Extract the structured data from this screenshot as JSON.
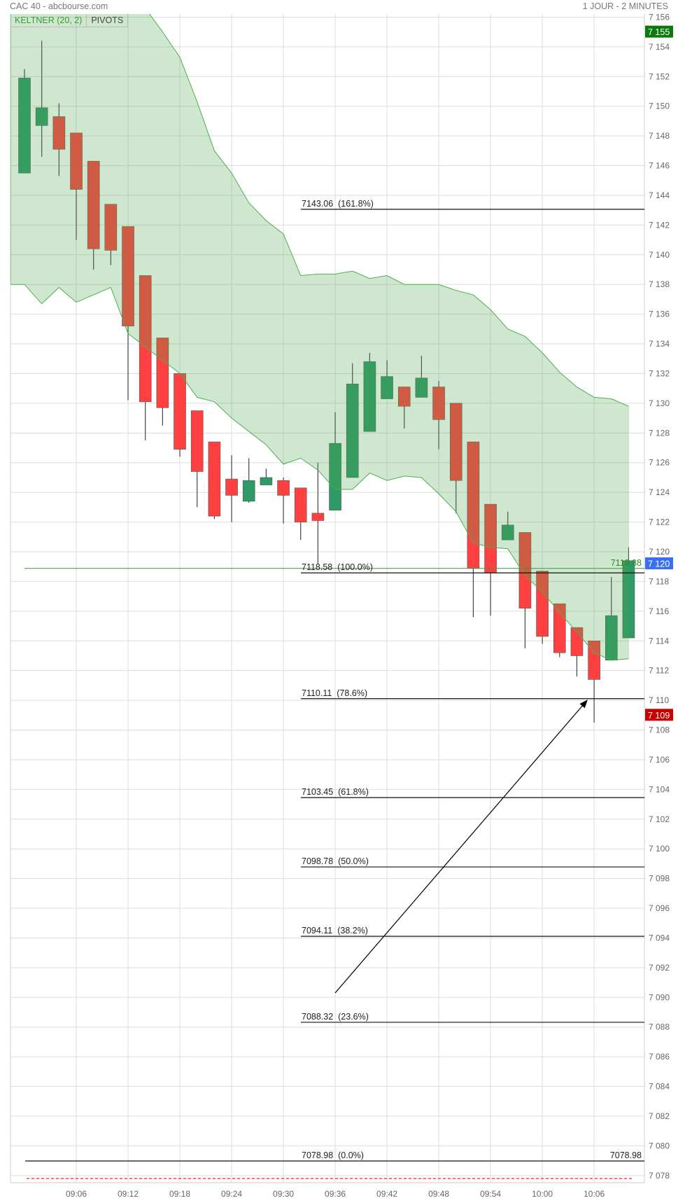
{
  "header": {
    "title": "CAC 40 - abcbourse.com",
    "period": "1 JOUR - 2 MINUTES"
  },
  "legend": {
    "keltner": "KELTNER (20, 2)",
    "pivots": "PIVOTS"
  },
  "colors": {
    "up": "#2e9a66",
    "down": "#ff4040",
    "band_line": "#4caf50",
    "band_fill": "rgba(76,165,76,0.27)",
    "badge_high": "#0a7a0a",
    "badge_last": "#3a6ff0",
    "badge_low": "#c80000"
  },
  "chart_data": {
    "type": "candlestick",
    "ylim": [
      7077,
      7157
    ],
    "y_ticks": [
      7078,
      7080,
      7082,
      7084,
      7086,
      7088,
      7090,
      7092,
      7094,
      7096,
      7098,
      7100,
      7102,
      7104,
      7106,
      7108,
      7110,
      7112,
      7114,
      7116,
      7118,
      7120,
      7122,
      7124,
      7126,
      7128,
      7130,
      7132,
      7134,
      7136,
      7138,
      7140,
      7142,
      7144,
      7146,
      7148,
      7150,
      7152,
      7154,
      7156
    ],
    "y_tick_labels": [
      "7 078",
      "7 080",
      "7 082",
      "7 084",
      "7 086",
      "7 088",
      "7 090",
      "7 092",
      "7 094",
      "7 096",
      "7 098",
      "7 100",
      "7 102",
      "7 104",
      "7 106",
      "7 108",
      "7 110",
      "7 112",
      "7 114",
      "7 116",
      "7 118",
      "7 120",
      "7 122",
      "7 124",
      "7 126",
      "7 128",
      "7 130",
      "7 132",
      "7 134",
      "7 136",
      "7 138",
      "7 140",
      "7 142",
      "7 144",
      "7 146",
      "7 148",
      "7 150",
      "7 152",
      "7 154",
      "7 156"
    ],
    "x_ticks": [
      "09:06",
      "09:12",
      "09:18",
      "09:24",
      "09:30",
      "09:36",
      "09:42",
      "09:48",
      "09:54",
      "10:00",
      "10:06"
    ],
    "candles": [
      {
        "t": "09:00",
        "o": 7145.5,
        "h": 7152.5,
        "l": 7145.5,
        "c": 7151.9
      },
      {
        "t": "09:02",
        "o": 7148.7,
        "h": 7154.4,
        "l": 7146.6,
        "c": 7149.9
      },
      {
        "t": "09:04",
        "o": 7149.3,
        "h": 7150.2,
        "l": 7145.3,
        "c": 7147.1
      },
      {
        "t": "09:06",
        "o": 7148.2,
        "h": 7148.2,
        "l": 7141.0,
        "c": 7144.4
      },
      {
        "t": "09:08",
        "o": 7146.3,
        "h": 7146.3,
        "l": 7139.0,
        "c": 7140.4
      },
      {
        "t": "09:10",
        "o": 7143.4,
        "h": 7143.4,
        "l": 7139.3,
        "c": 7140.3
      },
      {
        "t": "09:12",
        "o": 7141.9,
        "h": 7141.9,
        "l": 7130.2,
        "c": 7135.2
      },
      {
        "t": "09:14",
        "o": 7138.6,
        "h": 7138.6,
        "l": 7127.5,
        "c": 7130.1
      },
      {
        "t": "09:16",
        "o": 7134.4,
        "h": 7134.4,
        "l": 7128.5,
        "c": 7129.7
      },
      {
        "t": "09:18",
        "o": 7132.0,
        "h": 7132.0,
        "l": 7126.4,
        "c": 7126.9
      },
      {
        "t": "09:20",
        "o": 7129.5,
        "h": 7129.5,
        "l": 7123.0,
        "c": 7125.4
      },
      {
        "t": "09:22",
        "o": 7127.4,
        "h": 7127.4,
        "l": 7122.2,
        "c": 7122.4
      },
      {
        "t": "09:24",
        "o": 7124.9,
        "h": 7126.5,
        "l": 7122.0,
        "c": 7123.8
      },
      {
        "t": "09:26",
        "o": 7123.4,
        "h": 7126.3,
        "l": 7123.3,
        "c": 7124.8
      },
      {
        "t": "09:28",
        "o": 7124.5,
        "h": 7125.6,
        "l": 7124.5,
        "c": 7125.0
      },
      {
        "t": "09:30",
        "o": 7124.8,
        "h": 7125.0,
        "l": 7121.9,
        "c": 7123.8
      },
      {
        "t": "09:32",
        "o": 7124.3,
        "h": 7124.3,
        "l": 7120.8,
        "c": 7122.0
      },
      {
        "t": "09:34",
        "o": 7122.6,
        "h": 7126.0,
        "l": 7119.2,
        "c": 7122.1
      },
      {
        "t": "09:36",
        "o": 7122.8,
        "h": 7129.4,
        "l": 7122.8,
        "c": 7127.3
      },
      {
        "t": "09:38",
        "o": 7125.0,
        "h": 7132.7,
        "l": 7125.0,
        "c": 7131.3
      },
      {
        "t": "09:40",
        "o": 7128.1,
        "h": 7133.4,
        "l": 7128.1,
        "c": 7132.8
      },
      {
        "t": "09:42",
        "o": 7130.3,
        "h": 7132.9,
        "l": 7130.3,
        "c": 7131.8
      },
      {
        "t": "09:44",
        "o": 7131.1,
        "h": 7131.1,
        "l": 7128.3,
        "c": 7129.8
      },
      {
        "t": "09:46",
        "o": 7130.4,
        "h": 7133.2,
        "l": 7130.4,
        "c": 7131.7
      },
      {
        "t": "09:48",
        "o": 7131.1,
        "h": 7131.5,
        "l": 7126.9,
        "c": 7128.9
      },
      {
        "t": "09:50",
        "o": 7130.0,
        "h": 7130.0,
        "l": 7122.6,
        "c": 7124.8
      },
      {
        "t": "09:52",
        "o": 7127.4,
        "h": 7127.4,
        "l": 7115.6,
        "c": 7118.9
      },
      {
        "t": "09:54",
        "o": 7123.2,
        "h": 7123.2,
        "l": 7115.7,
        "c": 7118.6
      },
      {
        "t": "09:56",
        "o": 7120.8,
        "h": 7122.7,
        "l": 7120.8,
        "c": 7121.8
      },
      {
        "t": "09:58",
        "o": 7121.3,
        "h": 7121.3,
        "l": 7113.5,
        "c": 7116.2
      },
      {
        "t": "10:00",
        "o": 7118.7,
        "h": 7118.7,
        "l": 7113.8,
        "c": 7114.3
      },
      {
        "t": "10:02",
        "o": 7116.5,
        "h": 7116.5,
        "l": 7112.9,
        "c": 7113.2
      },
      {
        "t": "10:04",
        "o": 7114.9,
        "h": 7114.9,
        "l": 7111.6,
        "c": 7113.0
      },
      {
        "t": "10:06",
        "o": 7114.0,
        "h": 7114.0,
        "l": 7108.5,
        "c": 7111.4
      },
      {
        "t": "10:08",
        "o": 7112.7,
        "h": 7118.3,
        "l": 7112.7,
        "c": 7115.7
      },
      {
        "t": "10:10",
        "o": 7114.2,
        "h": 7120.3,
        "l": 7114.2,
        "c": 7119.4
      }
    ],
    "keltner_upper": [
      7170,
      7168,
      7166,
      7164,
      7162,
      7160,
      7158,
      7156.6,
      7155.0,
      7153.3,
      7150.3,
      7147.0,
      7145.5,
      7143.5,
      7142.3,
      7141.4,
      7138.6,
      7138.7,
      7138.7,
      7138.9,
      7138.4,
      7138.6,
      7138.0,
      7138.0,
      7138.0,
      7137.6,
      7137.3,
      7136.3,
      7135.0,
      7134.5,
      7133.4,
      7132.1,
      7131.1,
      7130.4,
      7130.3,
      7129.8
    ],
    "keltner_lower": [
      7138.0,
      7136.7,
      7137.8,
      7136.8,
      7137.3,
      7137.8,
      7134.7,
      7133.8,
      7132.9,
      7132.0,
      7130.4,
      7130.1,
      7129.0,
      7128.1,
      7127.2,
      7125.9,
      7126.3,
      7125.5,
      7124.2,
      7124.2,
      7125.3,
      7124.8,
      7125.1,
      7125.0,
      7123.9,
      7122.7,
      7120.6,
      7120.3,
      7120.2,
      7118.4,
      7117.3,
      7115.9,
      7114.6,
      7113.2,
      7112.7,
      7112.8
    ],
    "fibonacci": [
      {
        "value": 7143.06,
        "label": "7143.06  (161.8%)"
      },
      {
        "value": 7118.58,
        "label": "7118.58  (100.0%)"
      },
      {
        "value": 7110.11,
        "label": "7110.11  (78.6%)"
      },
      {
        "value": 7103.45,
        "label": "7103.45  (61.8%)"
      },
      {
        "value": 7098.78,
        "label": "7098.78  (50.0%)"
      },
      {
        "value": 7094.11,
        "label": "7094.11  (38.2%)"
      },
      {
        "value": 7088.32,
        "label": "7088.32  (23.6%)"
      },
      {
        "value": 7078.98,
        "label": "7078.98  (0.0%)",
        "right_label": "7078.98"
      }
    ],
    "last_line": {
      "value": 7118.88,
      "label": "7118.88"
    },
    "dashed_level": 7077.8,
    "arrow": {
      "from": {
        "t": "09:36",
        "price": 7090.3
      },
      "to": {
        "t": "10:06",
        "price": 7110.0
      }
    },
    "badges": [
      {
        "value": 7155,
        "label": "7 155",
        "kind": "high"
      },
      {
        "value": 7120,
        "label": "7 120",
        "kind": "last"
      },
      {
        "value": 7109,
        "label": "7 109",
        "kind": "low"
      }
    ]
  }
}
